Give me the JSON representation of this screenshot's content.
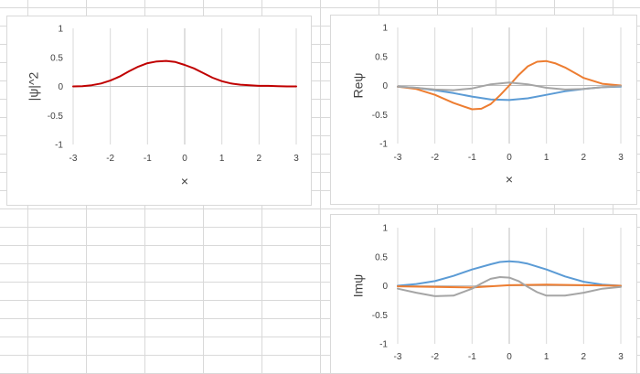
{
  "chart_data": [
    {
      "id": "chart-psi-sq",
      "type": "line",
      "title": "",
      "xlabel": "×",
      "ylabel": "|ψ|^2",
      "xlim": [
        -3,
        3
      ],
      "ylim": [
        -1,
        1
      ],
      "x_ticks": [
        -3,
        -2,
        -1,
        0,
        1,
        2,
        3
      ],
      "y_ticks": [
        -1,
        -0.5,
        0,
        0.5,
        1
      ],
      "grid": "vertical",
      "legend": "none",
      "series": [
        {
          "color": "#c00000",
          "x": [
            -3,
            -2.75,
            -2.5,
            -2.25,
            -2,
            -1.75,
            -1.5,
            -1.25,
            -1,
            -0.75,
            -0.5,
            -0.25,
            0,
            0.25,
            0.5,
            0.75,
            1,
            1.25,
            1.5,
            1.75,
            2,
            2.25,
            2.5,
            2.75,
            3
          ],
          "y": [
            0,
            0.005,
            0.02,
            0.05,
            0.1,
            0.17,
            0.26,
            0.34,
            0.4,
            0.43,
            0.44,
            0.42,
            0.37,
            0.31,
            0.23,
            0.15,
            0.09,
            0.05,
            0.03,
            0.02,
            0.01,
            0.01,
            0.005,
            0,
            0
          ]
        }
      ]
    },
    {
      "id": "chart-re",
      "type": "line",
      "title": "",
      "xlabel": "×",
      "ylabel": "Reψ",
      "xlim": [
        -3,
        3
      ],
      "ylim": [
        -1,
        1
      ],
      "x_ticks": [
        -3,
        -2,
        -1,
        0,
        1,
        2,
        3
      ],
      "y_ticks": [
        -1,
        -0.5,
        0,
        0.5,
        1
      ],
      "grid": "vertical",
      "legend": "none",
      "series": [
        {
          "color": "#5b9bd5",
          "x": [
            -3,
            -2.5,
            -2,
            -1.5,
            -1,
            -0.5,
            0,
            0.5,
            1,
            1.5,
            2,
            2.5,
            3
          ],
          "y": [
            -0.02,
            -0.04,
            -0.08,
            -0.13,
            -0.19,
            -0.24,
            -0.25,
            -0.22,
            -0.16,
            -0.1,
            -0.06,
            -0.03,
            -0.02
          ]
        },
        {
          "color": "#ed7d31",
          "x": [
            -3,
            -2.5,
            -2,
            -1.5,
            -1,
            -0.75,
            -0.5,
            -0.25,
            0,
            0.25,
            0.5,
            0.75,
            1,
            1.25,
            1.5,
            2,
            2.5,
            3
          ],
          "y": [
            -0.02,
            -0.06,
            -0.16,
            -0.3,
            -0.41,
            -0.4,
            -0.32,
            -0.17,
            0,
            0.18,
            0.33,
            0.41,
            0.42,
            0.38,
            0.31,
            0.13,
            0.03,
            0
          ]
        },
        {
          "color": "#a5a5a5",
          "x": [
            -3,
            -2.5,
            -2,
            -1.5,
            -1,
            -0.5,
            0,
            0.5,
            1,
            1.5,
            2,
            2.5,
            3
          ],
          "y": [
            -0.02,
            -0.04,
            -0.07,
            -0.08,
            -0.05,
            0.02,
            0.05,
            0.02,
            -0.04,
            -0.07,
            -0.06,
            -0.03,
            -0.01
          ]
        }
      ]
    },
    {
      "id": "chart-im",
      "type": "line",
      "title": "",
      "xlabel": "",
      "ylabel": "Imψ",
      "xlim": [
        -3,
        3
      ],
      "ylim": [
        -1,
        1
      ],
      "x_ticks": [
        -3,
        -2,
        -1,
        0,
        1,
        2,
        3
      ],
      "y_ticks": [
        -1,
        -0.5,
        0,
        0.5,
        1
      ],
      "grid": "vertical",
      "legend": "none",
      "series": [
        {
          "color": "#5b9bd5",
          "x": [
            -3,
            -2.5,
            -2,
            -1.5,
            -1,
            -0.5,
            -0.25,
            0,
            0.25,
            0.5,
            1,
            1.5,
            2,
            2.5,
            3
          ],
          "y": [
            0,
            0.03,
            0.08,
            0.17,
            0.28,
            0.37,
            0.41,
            0.42,
            0.41,
            0.38,
            0.28,
            0.16,
            0.07,
            0.02,
            0
          ]
        },
        {
          "color": "#ed7d31",
          "x": [
            -3,
            -2,
            -1,
            0,
            1,
            2,
            3
          ],
          "y": [
            -0.01,
            -0.02,
            -0.03,
            0.01,
            0.02,
            0.01,
            0
          ]
        },
        {
          "color": "#a5a5a5",
          "x": [
            -3,
            -2.5,
            -2,
            -1.5,
            -1,
            -0.75,
            -0.5,
            -0.25,
            0,
            0.25,
            0.5,
            0.75,
            1,
            1.5,
            2,
            2.5,
            3
          ],
          "y": [
            -0.05,
            -0.12,
            -0.18,
            -0.17,
            -0.05,
            0.04,
            0.12,
            0.15,
            0.14,
            0.08,
            -0.02,
            -0.11,
            -0.17,
            -0.17,
            -0.12,
            -0.05,
            -0.02
          ]
        }
      ]
    }
  ]
}
